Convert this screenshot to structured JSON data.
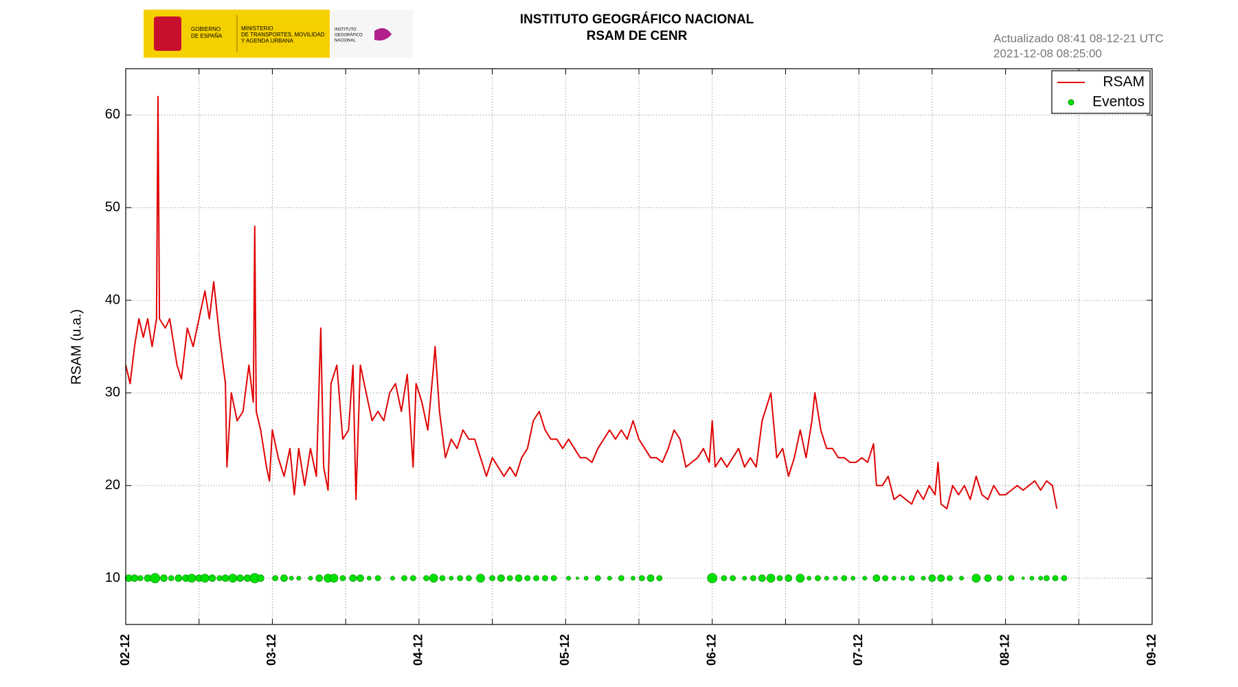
{
  "logo": {
    "gov": [
      "GOBIERNO",
      "DE ESPAÑA"
    ],
    "ministry": [
      "MINISTERIO",
      "DE TRANSPORTES, MOVILIDAD",
      "Y AGENDA URBANA"
    ],
    "institute": [
      "INSTITUTO",
      "GEOGRÁFICO",
      "NACIONAL"
    ]
  },
  "chart_data": {
    "type": "line",
    "title": "INSTITUTO GEOGRÁFICO NACIONAL",
    "subtitle": "RSAM DE CENR",
    "annotations": [
      "Actualizado 08:41 08-12-21 UTC",
      "2021-12-08 08:25:00"
    ],
    "ylabel": "RSAM (u.a.)",
    "xlim": [
      2,
      9
    ],
    "ylim": [
      5,
      65
    ],
    "xticks": [
      {
        "value": 2,
        "label": "02-12"
      },
      {
        "value": 3,
        "label": "03-12"
      },
      {
        "value": 4,
        "label": "04-12"
      },
      {
        "value": 5,
        "label": "05-12"
      },
      {
        "value": 6,
        "label": "06-12"
      },
      {
        "value": 7,
        "label": "07-12"
      },
      {
        "value": 8,
        "label": "08-12"
      },
      {
        "value": 9,
        "label": "09-12"
      }
    ],
    "xminorticks": [
      2.5,
      3.5,
      4.5,
      5.5,
      6.5,
      7.5,
      8.5
    ],
    "yticks": [
      10,
      20,
      30,
      40,
      50,
      60
    ],
    "grid": true,
    "legend": "upper right",
    "series": [
      {
        "name": "RSAM",
        "type": "line",
        "color": "#e00000",
        "x": [
          2.0,
          2.03,
          2.06,
          2.09,
          2.12,
          2.15,
          2.18,
          2.21,
          2.22,
          2.23,
          2.27,
          2.3,
          2.35,
          2.38,
          2.42,
          2.46,
          2.5,
          2.54,
          2.57,
          2.6,
          2.64,
          2.68,
          2.69,
          2.72,
          2.76,
          2.8,
          2.84,
          2.87,
          2.88,
          2.89,
          2.92,
          2.96,
          2.98,
          3.0,
          3.04,
          3.08,
          3.12,
          3.15,
          3.18,
          3.22,
          3.26,
          3.3,
          3.33,
          3.35,
          3.38,
          3.4,
          3.44,
          3.48,
          3.52,
          3.55,
          3.57,
          3.6,
          3.64,
          3.68,
          3.72,
          3.76,
          3.8,
          3.84,
          3.88,
          3.92,
          3.96,
          3.98,
          4.02,
          4.06,
          4.1,
          4.11,
          4.14,
          4.18,
          4.22,
          4.26,
          4.3,
          4.34,
          4.38,
          4.42,
          4.46,
          4.5,
          4.54,
          4.58,
          4.62,
          4.66,
          4.7,
          4.74,
          4.78,
          4.82,
          4.86,
          4.9,
          4.94,
          4.98,
          5.02,
          5.06,
          5.1,
          5.14,
          5.18,
          5.22,
          5.26,
          5.3,
          5.34,
          5.38,
          5.42,
          5.46,
          5.5,
          5.54,
          5.58,
          5.62,
          5.66,
          5.7,
          5.74,
          5.78,
          5.82,
          5.86,
          5.9,
          5.94,
          5.98,
          6.0,
          6.02,
          6.06,
          6.1,
          6.14,
          6.18,
          6.22,
          6.26,
          6.3,
          6.34,
          6.4,
          6.44,
          6.48,
          6.52,
          6.56,
          6.6,
          6.64,
          6.68,
          6.7,
          6.74,
          6.78,
          6.82,
          6.86,
          6.9,
          6.94,
          6.98,
          7.02,
          7.06,
          7.1,
          7.12,
          7.16,
          7.2,
          7.24,
          7.28,
          7.32,
          7.36,
          7.4,
          7.44,
          7.48,
          7.52,
          7.54,
          7.56,
          7.6,
          7.64,
          7.68,
          7.72,
          7.76,
          7.8,
          7.84,
          7.88,
          7.92,
          7.96,
          8.0,
          8.04,
          8.08,
          8.12,
          8.16,
          8.2,
          8.24,
          8.28,
          8.32,
          8.35
        ],
        "values": [
          33,
          31,
          35,
          38,
          36,
          38,
          35,
          38,
          62,
          38,
          37,
          38,
          33,
          31.5,
          37,
          35,
          38,
          41,
          38,
          42,
          36,
          31,
          22,
          30,
          27,
          28,
          33,
          29,
          48,
          28,
          26,
          22,
          20.5,
          26,
          23,
          21,
          24,
          19,
          24,
          20,
          24,
          21,
          37,
          22,
          19.5,
          31,
          33,
          25,
          26,
          33,
          18.5,
          33,
          30,
          27,
          28,
          27,
          30,
          31,
          28,
          32,
          22,
          31,
          29,
          26,
          33,
          35,
          28,
          23,
          25,
          24,
          26,
          25,
          25,
          23,
          21,
          23,
          22,
          21,
          22,
          21,
          23,
          24,
          27,
          28,
          26,
          25,
          25,
          24,
          25,
          24,
          23,
          23,
          22.5,
          24,
          25,
          26,
          25,
          26,
          25,
          27,
          25,
          24,
          23,
          23,
          22.5,
          24,
          26,
          25,
          22,
          22.5,
          23,
          24,
          22.5,
          27,
          22,
          23,
          22,
          23,
          24,
          22,
          23,
          22,
          27,
          30,
          23,
          24,
          21,
          23,
          26,
          23,
          27,
          30,
          26,
          24,
          24,
          23,
          23,
          22.5,
          22.5,
          23,
          22.5,
          24.5,
          20,
          20,
          21,
          18.5,
          19,
          18.5,
          18,
          19.5,
          18.5,
          20,
          19,
          22.5,
          18,
          17.5,
          20,
          19,
          20,
          18.5,
          21,
          19,
          18.5,
          20,
          19,
          19,
          19.5,
          20,
          19.5,
          20,
          20.5,
          19.5,
          20.5,
          20,
          17.5
        ]
      },
      {
        "name": "Eventos",
        "type": "scatter",
        "color": "#00e000",
        "x": [
          2.02,
          2.06,
          2.1,
          2.15,
          2.2,
          2.26,
          2.31,
          2.36,
          2.41,
          2.45,
          2.5,
          2.54,
          2.59,
          2.64,
          2.68,
          2.73,
          2.78,
          2.83,
          2.88,
          2.92,
          3.02,
          3.08,
          3.13,
          3.18,
          3.26,
          3.32,
          3.38,
          3.42,
          3.48,
          3.55,
          3.6,
          3.66,
          3.72,
          3.82,
          3.9,
          3.96,
          4.05,
          4.1,
          4.16,
          4.22,
          4.28,
          4.34,
          4.42,
          4.5,
          4.56,
          4.62,
          4.68,
          4.74,
          4.8,
          4.86,
          4.92,
          5.02,
          5.08,
          5.14,
          5.22,
          5.3,
          5.38,
          5.46,
          5.52,
          5.58,
          5.64,
          6.0,
          6.08,
          6.14,
          6.22,
          6.28,
          6.34,
          6.4,
          6.46,
          6.52,
          6.6,
          6.66,
          6.72,
          6.78,
          6.84,
          6.9,
          6.96,
          7.04,
          7.12,
          7.18,
          7.24,
          7.3,
          7.36,
          7.44,
          7.5,
          7.56,
          7.62,
          7.7,
          7.8,
          7.88,
          7.96,
          8.04,
          8.12,
          8.18,
          8.24,
          8.28,
          8.34,
          8.4
        ],
        "values": [
          10,
          10,
          10,
          10,
          10,
          10,
          10,
          10,
          10,
          10,
          10,
          10,
          10,
          10,
          10,
          10,
          10,
          10,
          10,
          10,
          10,
          10,
          10,
          10,
          10,
          10,
          10,
          10,
          10,
          10,
          10,
          10,
          10,
          10,
          10,
          10,
          10,
          10,
          10,
          10,
          10,
          10,
          10,
          10,
          10,
          10,
          10,
          10,
          10,
          10,
          10,
          10,
          10,
          10,
          10,
          10,
          10,
          10,
          10,
          10,
          10,
          10,
          10,
          10,
          10,
          10,
          10,
          10,
          10,
          10,
          10,
          10,
          10,
          10,
          10,
          10,
          10,
          10,
          10,
          10,
          10,
          10,
          10,
          10,
          10,
          10,
          10,
          10,
          10,
          10,
          10,
          10,
          10,
          10,
          10,
          10,
          10,
          10
        ],
        "sizes": [
          5,
          5,
          4,
          5,
          7,
          5,
          4,
          5,
          5,
          6,
          5,
          6,
          5,
          4,
          5,
          6,
          5,
          5,
          7,
          5,
          4,
          5,
          3,
          3,
          3,
          5,
          6,
          6,
          4,
          5,
          5,
          3,
          4,
          3,
          4,
          4,
          4,
          6,
          4,
          3,
          4,
          4,
          6,
          4,
          5,
          4,
          5,
          4,
          4,
          4,
          4,
          3,
          2,
          3,
          4,
          3,
          4,
          3,
          4,
          5,
          4,
          7,
          4,
          4,
          3,
          4,
          5,
          6,
          4,
          5,
          6,
          3,
          4,
          3,
          3,
          4,
          3,
          3,
          5,
          4,
          3,
          3,
          4,
          3,
          5,
          5,
          4,
          3,
          6,
          5,
          4,
          4,
          2,
          3,
          3,
          4,
          4,
          4
        ]
      }
    ]
  }
}
